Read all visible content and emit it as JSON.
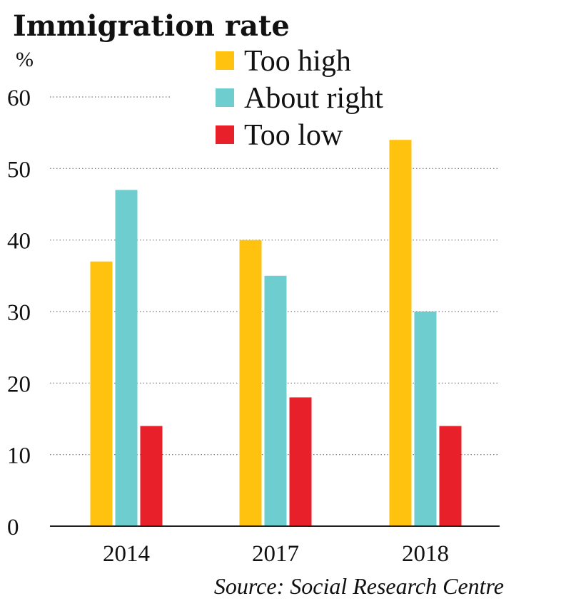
{
  "chart_data": {
    "type": "bar",
    "title": "Immigration rate",
    "ylabel": "%",
    "ylim": [
      0,
      60
    ],
    "yticks": [
      "0",
      "10",
      "20",
      "30",
      "40",
      "50",
      "60"
    ],
    "categories": [
      "2014",
      "2017",
      "2018"
    ],
    "series": [
      {
        "name": "Too high",
        "values": [
          37,
          40,
          54
        ],
        "color": "#ffc20e"
      },
      {
        "name": "About right",
        "values": [
          47,
          35,
          30
        ],
        "color": "#6ecdcf"
      },
      {
        "name": "Too low",
        "values": [
          14,
          18,
          14
        ],
        "color": "#e8202a"
      }
    ],
    "grid": "dotted horizontal",
    "legend_position": "top-right",
    "source": "Source: Social Research Centre"
  }
}
